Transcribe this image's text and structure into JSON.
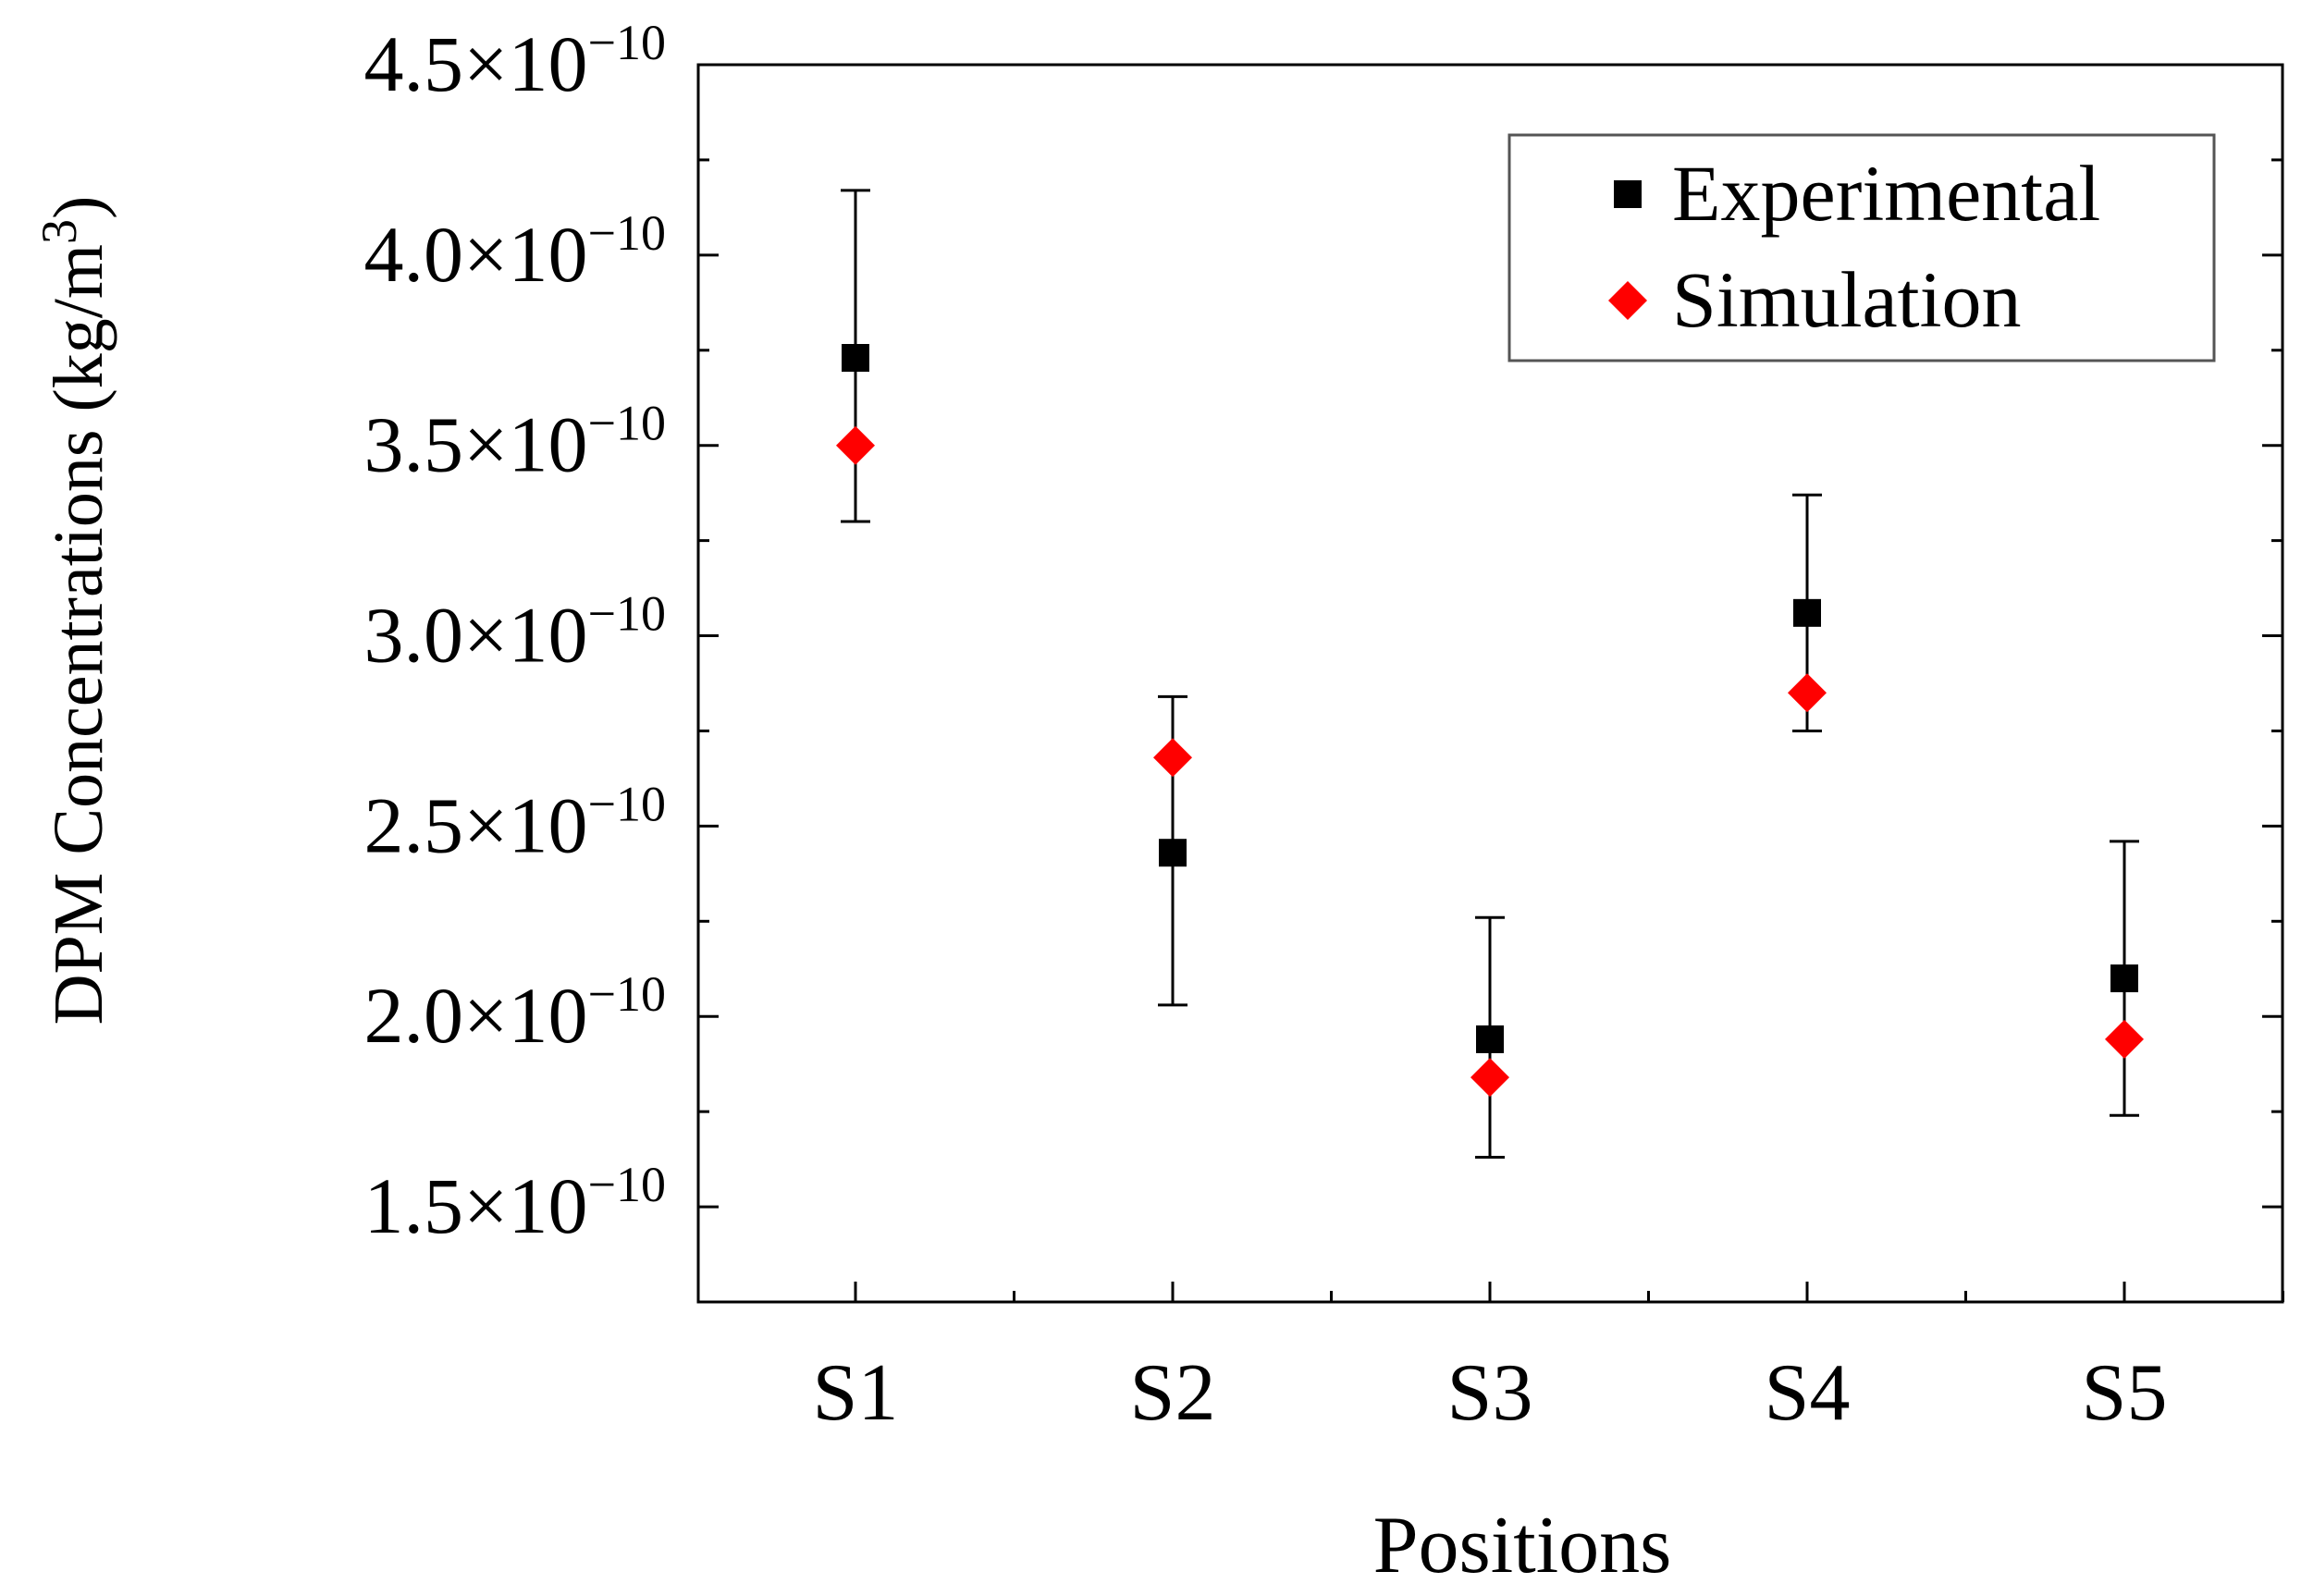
{
  "chart_data": {
    "type": "scatter",
    "categories": [
      "S1",
      "S2",
      "S3",
      "S4",
      "S5"
    ],
    "xlabel": "Positions",
    "ylabel": "DPM Concentrations (kg/m",
    "ylabel_sup": "3",
    "ylabel_close": ")",
    "ylim": [
      1.25e-10,
      4.5e-10
    ],
    "yticks": [
      1.5e-10,
      2e-10,
      2.5e-10,
      3e-10,
      3.5e-10,
      4e-10,
      4.5e-10
    ],
    "ytick_labels": [
      {
        "mantissa": "1.5",
        "times": "×",
        "base": "10",
        "exp": "−10"
      },
      {
        "mantissa": "2.0",
        "times": "×",
        "base": "10",
        "exp": "−10"
      },
      {
        "mantissa": "2.5",
        "times": "×",
        "base": "10",
        "exp": "−10"
      },
      {
        "mantissa": "3.0",
        "times": "×",
        "base": "10",
        "exp": "−10"
      },
      {
        "mantissa": "3.5",
        "times": "×",
        "base": "10",
        "exp": "−10"
      },
      {
        "mantissa": "4.0",
        "times": "×",
        "base": "10",
        "exp": "−10"
      },
      {
        "mantissa": "4.5",
        "times": "×",
        "base": "10",
        "exp": "−10"
      }
    ],
    "series": [
      {
        "name": "Experimental",
        "marker": "square",
        "color": "#000000",
        "values": [
          3.73e-10,
          2.43e-10,
          1.94e-10,
          3.06e-10,
          2.1e-10
        ],
        "error_low": [
          3.3e-10,
          2.03e-10,
          1.63e-10,
          2.75e-10,
          1.74e-10
        ],
        "error_high": [
          4.17e-10,
          2.84e-10,
          2.26e-10,
          3.37e-10,
          2.46e-10
        ]
      },
      {
        "name": "Simulation",
        "marker": "diamond",
        "color": "#ff0000",
        "values": [
          3.5e-10,
          2.68e-10,
          1.84e-10,
          2.85e-10,
          1.94e-10
        ]
      }
    ],
    "legend_position": "top-right",
    "grid": false
  }
}
